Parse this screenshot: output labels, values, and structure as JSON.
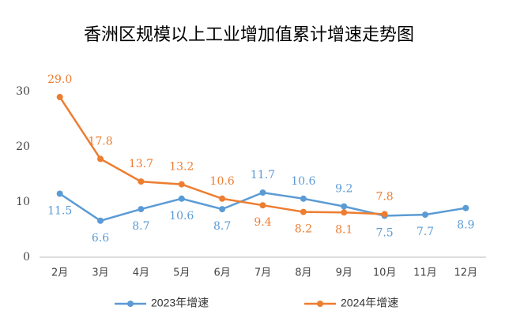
{
  "chart_data": {
    "type": "line",
    "title": "香洲区规模以上工业增加值累计增速走势图",
    "categories": [
      "2月",
      "3月",
      "4月",
      "5月",
      "6月",
      "7月",
      "8月",
      "9月",
      "10月",
      "11月",
      "12月"
    ],
    "series": [
      {
        "name": "2023年增速",
        "color": "#5b9bd5",
        "values": [
          11.5,
          6.6,
          8.7,
          10.6,
          8.7,
          11.7,
          10.6,
          9.2,
          7.5,
          7.7,
          8.9
        ]
      },
      {
        "name": "2024年增速",
        "color": "#ed7d31",
        "values": [
          29,
          17.8,
          13.7,
          13.2,
          10.6,
          9.4,
          8.2,
          8.1,
          7.8,
          null,
          null
        ],
        "value_labels": [
          "29.0",
          "17.8",
          "13.7",
          "13.2",
          "10.6",
          "9.4",
          "8.2",
          "8.1",
          "7.8",
          null,
          null
        ]
      }
    ],
    "ylim": [
      0,
      30
    ],
    "yticks": [
      0,
      10,
      20,
      30
    ],
    "grid": false,
    "legend": "bottom"
  }
}
